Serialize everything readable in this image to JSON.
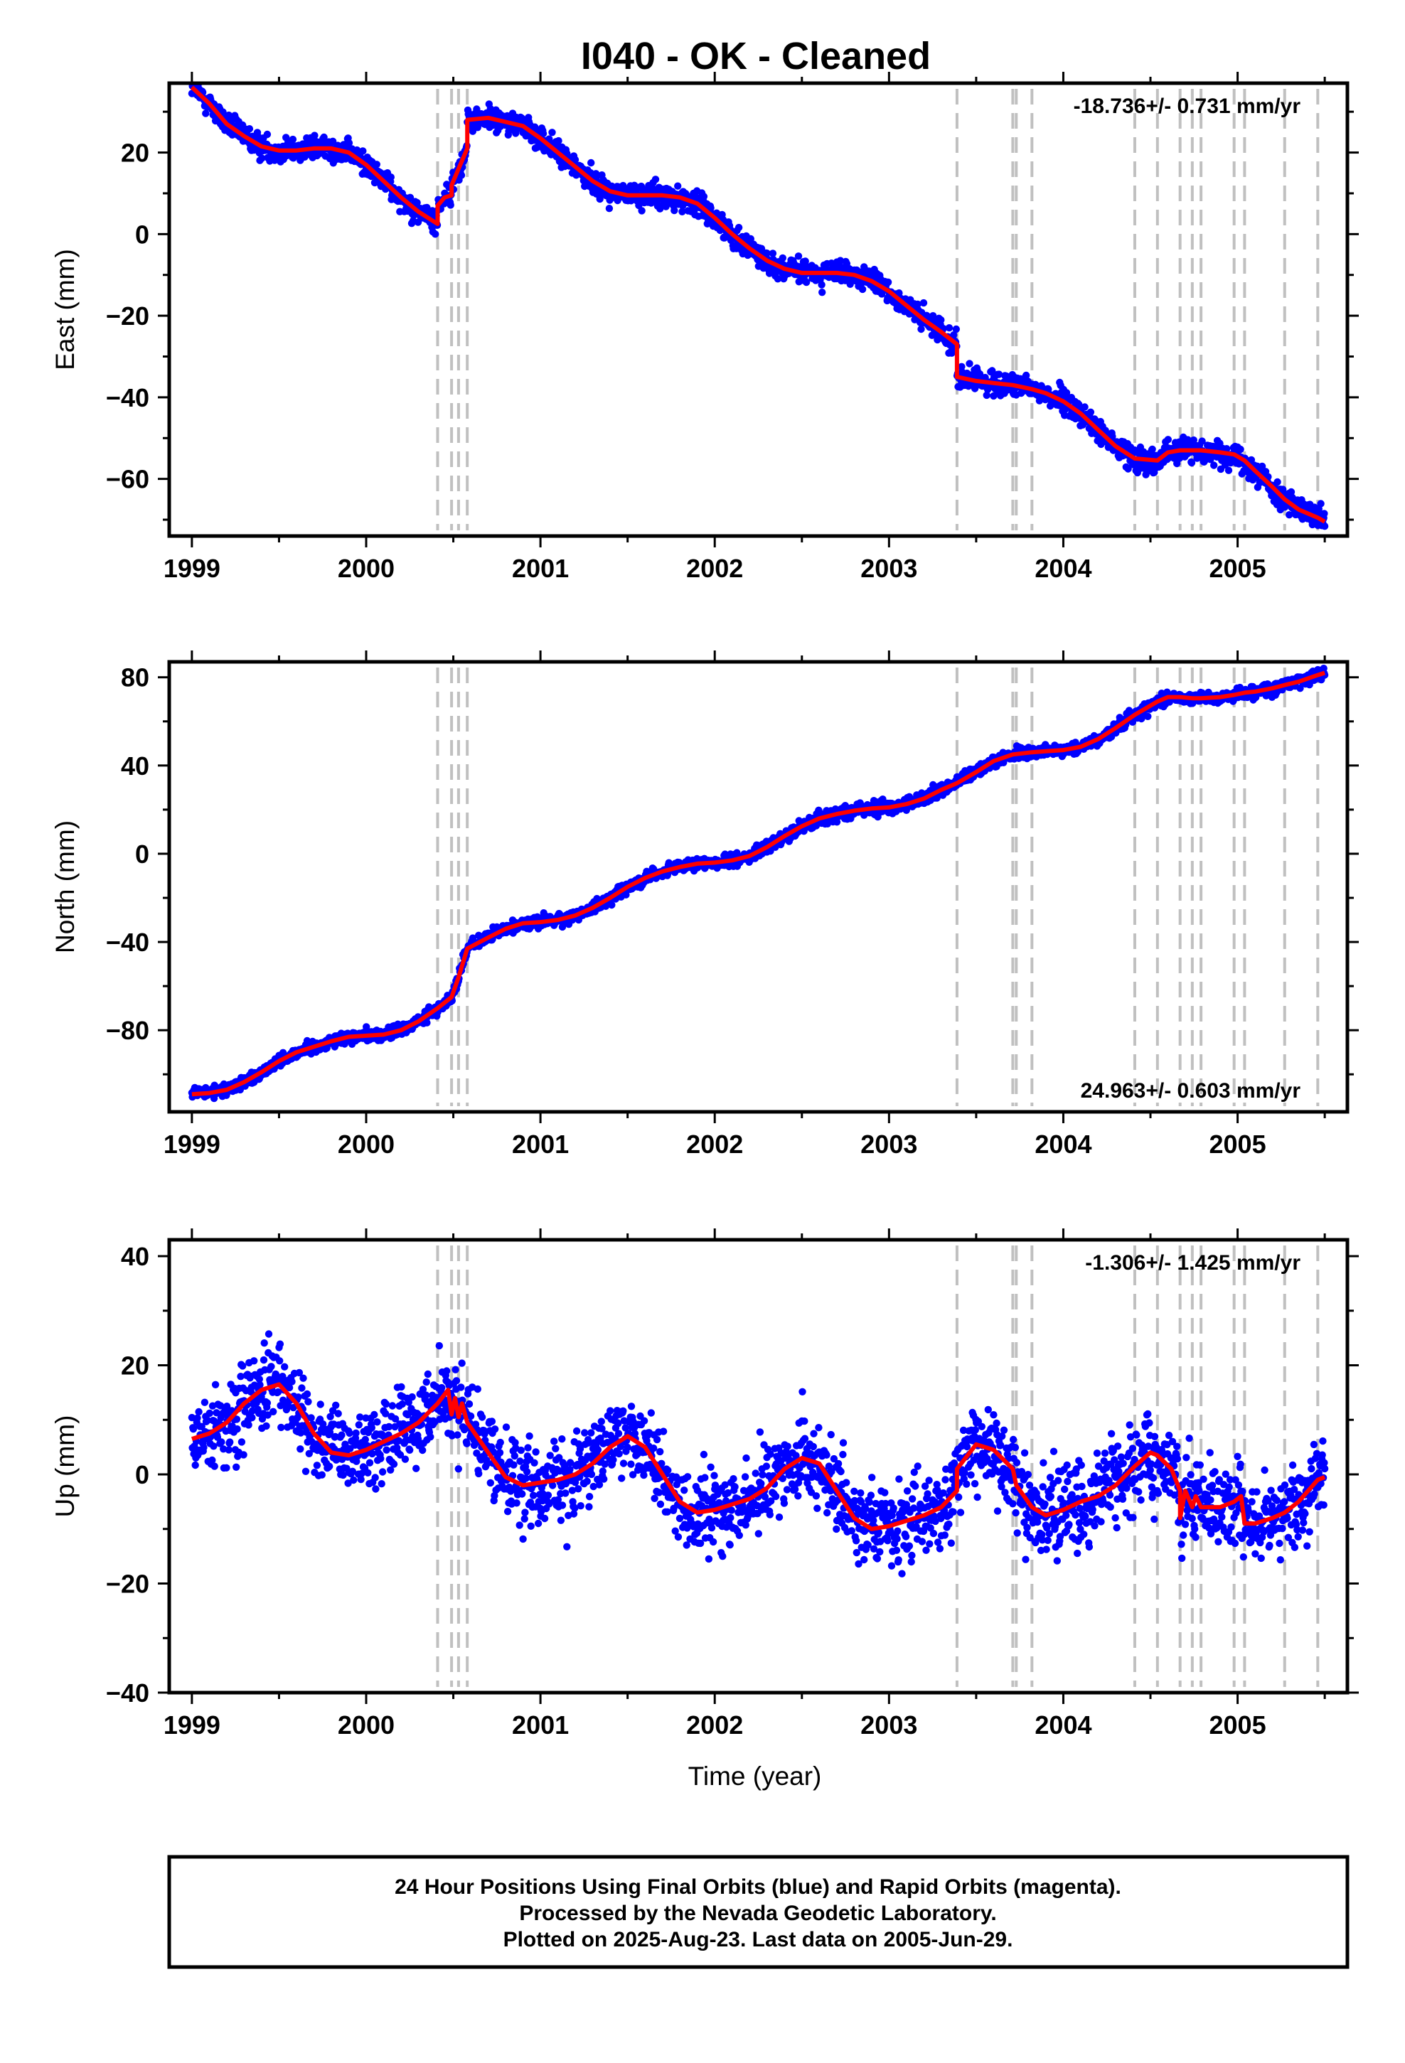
{
  "page": {
    "title": "I040  - OK - Cleaned"
  },
  "colors": {
    "points": "#0000ff",
    "model": "#ff0000",
    "steps": "#c0c0c0",
    "frame": "#000000"
  },
  "footer": {
    "lines": [
      "24 Hour Positions Using Final Orbits (blue) and Rapid Orbits (magenta).",
      "Processed by the Nevada Geodetic Laboratory.",
      "Plotted on 2025-Aug-23. Last data on 2005-Jun-29."
    ]
  },
  "chart_data": [
    {
      "type": "scatter",
      "component": "east",
      "title": "",
      "xlabel": "",
      "ylabel": "East (mm)",
      "rate_label": "-18.736+/- 0.731 mm/yr",
      "xlim": [
        1998.87,
        2005.63
      ],
      "ylim": [
        -74,
        37
      ],
      "x_ticks": [
        1999,
        2000,
        2001,
        2002,
        2003,
        2004,
        2005
      ],
      "x_tick_labels": [
        "1999",
        "2000",
        "2001",
        "2002",
        "2003",
        "2004",
        "2005"
      ],
      "y_ticks": [
        20,
        0,
        -20,
        -40,
        -60
      ],
      "y_tick_labels": [
        "20",
        "0",
        "−20",
        "−40",
        "−60"
      ],
      "step_lines": [
        2000.41,
        2000.49,
        2000.53,
        2000.58,
        2003.39,
        2003.71,
        2003.73,
        2003.82,
        2004.41,
        2004.54,
        2004.67,
        2004.74,
        2004.79,
        2004.98,
        2005.04,
        2005.27,
        2005.46
      ],
      "model": [
        [
          1999.0,
          36
        ],
        [
          1999.1,
          32
        ],
        [
          1999.2,
          27
        ],
        [
          1999.3,
          24
        ],
        [
          1999.4,
          21.5
        ],
        [
          1999.5,
          20.5
        ],
        [
          1999.6,
          20.5
        ],
        [
          1999.7,
          21
        ],
        [
          1999.8,
          21
        ],
        [
          1999.9,
          20
        ],
        [
          2000.0,
          17
        ],
        [
          2000.1,
          13
        ],
        [
          2000.2,
          9
        ],
        [
          2000.3,
          5.5
        ],
        [
          2000.41,
          2.5
        ],
        [
          2000.41,
          7
        ],
        [
          2000.45,
          9
        ],
        [
          2000.49,
          9.5
        ],
        [
          2000.49,
          12
        ],
        [
          2000.53,
          16
        ],
        [
          2000.58,
          21
        ],
        [
          2000.58,
          28
        ],
        [
          2000.7,
          28.5
        ],
        [
          2000.8,
          27.5
        ],
        [
          2000.9,
          26.5
        ],
        [
          2001.0,
          23.5
        ],
        [
          2001.1,
          20
        ],
        [
          2001.2,
          16.5
        ],
        [
          2001.3,
          13
        ],
        [
          2001.4,
          10.5
        ],
        [
          2001.5,
          9.5
        ],
        [
          2001.6,
          9.5
        ],
        [
          2001.7,
          9.5
        ],
        [
          2001.8,
          9
        ],
        [
          2001.9,
          7.5
        ],
        [
          2002.0,
          4
        ],
        [
          2002.1,
          0
        ],
        [
          2002.2,
          -3.5
        ],
        [
          2002.3,
          -6.5
        ],
        [
          2002.4,
          -8.5
        ],
        [
          2002.5,
          -9.5
        ],
        [
          2002.6,
          -9.5
        ],
        [
          2002.7,
          -9.5
        ],
        [
          2002.8,
          -10
        ],
        [
          2002.9,
          -11.5
        ],
        [
          2003.0,
          -14
        ],
        [
          2003.1,
          -17.5
        ],
        [
          2003.2,
          -21
        ],
        [
          2003.3,
          -24
        ],
        [
          2003.39,
          -27
        ],
        [
          2003.39,
          -35
        ],
        [
          2003.5,
          -36
        ],
        [
          2003.6,
          -36.5
        ],
        [
          2003.71,
          -37
        ],
        [
          2003.82,
          -38
        ],
        [
          2003.9,
          -39
        ],
        [
          2004.0,
          -41
        ],
        [
          2004.1,
          -44
        ],
        [
          2004.2,
          -48
        ],
        [
          2004.3,
          -52
        ],
        [
          2004.41,
          -55
        ],
        [
          2004.54,
          -55.5
        ],
        [
          2004.6,
          -53.5
        ],
        [
          2004.67,
          -53
        ],
        [
          2004.74,
          -53
        ],
        [
          2004.79,
          -53
        ],
        [
          2004.9,
          -53.5
        ],
        [
          2004.98,
          -54
        ],
        [
          2005.04,
          -55.5
        ],
        [
          2005.1,
          -58
        ],
        [
          2005.2,
          -62
        ],
        [
          2005.27,
          -65
        ],
        [
          2005.35,
          -67.5
        ],
        [
          2005.46,
          -69.5
        ],
        [
          2005.5,
          -70.5
        ]
      ]
    },
    {
      "type": "scatter",
      "component": "north",
      "title": "",
      "xlabel": "",
      "ylabel": "North (mm)",
      "rate_label": "24.963+/- 0.603 mm/yr",
      "xlim": [
        1998.87,
        2005.63
      ],
      "ylim": [
        -117,
        87
      ],
      "x_ticks": [
        1999,
        2000,
        2001,
        2002,
        2003,
        2004,
        2005
      ],
      "x_tick_labels": [
        "1999",
        "2000",
        "2001",
        "2002",
        "2003",
        "2004",
        "2005"
      ],
      "y_ticks": [
        80,
        40,
        0,
        -40,
        -80
      ],
      "y_tick_labels": [
        "80",
        "40",
        "0",
        "−40",
        "−80"
      ],
      "step_lines": [
        2000.41,
        2000.49,
        2000.53,
        2000.58,
        2003.39,
        2003.71,
        2003.73,
        2003.82,
        2004.41,
        2004.54,
        2004.67,
        2004.74,
        2004.79,
        2004.98,
        2005.04,
        2005.27,
        2005.46
      ],
      "model": [
        [
          1999.0,
          -109
        ],
        [
          1999.1,
          -108.5
        ],
        [
          1999.2,
          -107
        ],
        [
          1999.3,
          -103.5
        ],
        [
          1999.4,
          -99
        ],
        [
          1999.5,
          -94
        ],
        [
          1999.6,
          -90
        ],
        [
          1999.7,
          -87.5
        ],
        [
          1999.8,
          -85
        ],
        [
          1999.9,
          -83
        ],
        [
          2000.0,
          -82.5
        ],
        [
          2000.1,
          -82
        ],
        [
          2000.2,
          -80
        ],
        [
          2000.3,
          -76
        ],
        [
          2000.41,
          -70
        ],
        [
          2000.49,
          -65
        ],
        [
          2000.53,
          -56
        ],
        [
          2000.58,
          -43
        ],
        [
          2000.7,
          -38
        ],
        [
          2000.8,
          -34
        ],
        [
          2000.9,
          -31.5
        ],
        [
          2001.0,
          -31
        ],
        [
          2001.1,
          -30
        ],
        [
          2001.2,
          -28
        ],
        [
          2001.3,
          -24.5
        ],
        [
          2001.4,
          -20
        ],
        [
          2001.5,
          -15
        ],
        [
          2001.6,
          -11
        ],
        [
          2001.7,
          -8
        ],
        [
          2001.8,
          -6
        ],
        [
          2001.9,
          -4.5
        ],
        [
          2002.0,
          -4
        ],
        [
          2002.1,
          -3
        ],
        [
          2002.2,
          -1
        ],
        [
          2002.3,
          3
        ],
        [
          2002.4,
          8
        ],
        [
          2002.5,
          12.5
        ],
        [
          2002.6,
          16
        ],
        [
          2002.7,
          18
        ],
        [
          2002.8,
          19.5
        ],
        [
          2002.9,
          20.5
        ],
        [
          2003.0,
          21
        ],
        [
          2003.1,
          22.5
        ],
        [
          2003.2,
          25
        ],
        [
          2003.3,
          29
        ],
        [
          2003.39,
          32
        ],
        [
          2003.5,
          37
        ],
        [
          2003.6,
          42
        ],
        [
          2003.71,
          45
        ],
        [
          2003.82,
          46
        ],
        [
          2003.9,
          46.5
        ],
        [
          2004.0,
          47
        ],
        [
          2004.1,
          48.5
        ],
        [
          2004.2,
          52
        ],
        [
          2004.3,
          57
        ],
        [
          2004.41,
          63
        ],
        [
          2004.54,
          69
        ],
        [
          2004.6,
          71
        ],
        [
          2004.67,
          71
        ],
        [
          2004.74,
          70.5
        ],
        [
          2004.79,
          70.5
        ],
        [
          2004.9,
          71
        ],
        [
          2004.98,
          72
        ],
        [
          2005.04,
          73
        ],
        [
          2005.1,
          73.5
        ],
        [
          2005.2,
          75
        ],
        [
          2005.27,
          76.5
        ],
        [
          2005.35,
          78
        ],
        [
          2005.46,
          81
        ],
        [
          2005.5,
          82
        ]
      ]
    },
    {
      "type": "scatter",
      "component": "up",
      "title": "",
      "xlabel": "Time (year)",
      "ylabel": "Up (mm)",
      "rate_label": "-1.306+/- 1.425 mm/yr",
      "xlim": [
        1998.87,
        2005.63
      ],
      "ylim": [
        -40,
        43
      ],
      "x_ticks": [
        1999,
        2000,
        2001,
        2002,
        2003,
        2004,
        2005
      ],
      "x_tick_labels": [
        "1999",
        "2000",
        "2001",
        "2002",
        "2003",
        "2004",
        "2005"
      ],
      "y_ticks": [
        40,
        20,
        0,
        -20,
        -40
      ],
      "y_tick_labels": [
        "40",
        "20",
        "0",
        "−20",
        "−40"
      ],
      "step_lines": [
        2000.41,
        2000.49,
        2000.53,
        2000.58,
        2003.39,
        2003.71,
        2003.73,
        2003.82,
        2004.41,
        2004.54,
        2004.67,
        2004.74,
        2004.79,
        2004.98,
        2005.04,
        2005.27,
        2005.46
      ],
      "model": [
        [
          1999.0,
          6.5
        ],
        [
          1999.1,
          7.5
        ],
        [
          1999.2,
          9.5
        ],
        [
          1999.3,
          13
        ],
        [
          1999.4,
          15.5
        ],
        [
          1999.5,
          16.5
        ],
        [
          1999.6,
          13
        ],
        [
          1999.7,
          7.5
        ],
        [
          1999.8,
          4
        ],
        [
          1999.9,
          3.5
        ],
        [
          2000.0,
          4.5
        ],
        [
          2000.1,
          6
        ],
        [
          2000.2,
          7.5
        ],
        [
          2000.3,
          9.5
        ],
        [
          2000.41,
          13
        ],
        [
          2000.47,
          15.5
        ],
        [
          2000.49,
          11
        ],
        [
          2000.51,
          14
        ],
        [
          2000.53,
          10.5
        ],
        [
          2000.55,
          13
        ],
        [
          2000.58,
          9.5
        ],
        [
          2000.7,
          4
        ],
        [
          2000.8,
          -0.5
        ],
        [
          2000.9,
          -2
        ],
        [
          2001.0,
          -1.5
        ],
        [
          2001.1,
          -1
        ],
        [
          2001.2,
          0
        ],
        [
          2001.3,
          2
        ],
        [
          2001.4,
          5
        ],
        [
          2001.5,
          7
        ],
        [
          2001.6,
          5
        ],
        [
          2001.7,
          0
        ],
        [
          2001.8,
          -5
        ],
        [
          2001.9,
          -7
        ],
        [
          2002.0,
          -6.5
        ],
        [
          2002.1,
          -5.5
        ],
        [
          2002.2,
          -4.5
        ],
        [
          2002.3,
          -2.5
        ],
        [
          2002.4,
          1
        ],
        [
          2002.5,
          3
        ],
        [
          2002.6,
          2
        ],
        [
          2002.7,
          -3
        ],
        [
          2002.8,
          -8
        ],
        [
          2002.9,
          -10
        ],
        [
          2003.0,
          -9.5
        ],
        [
          2003.1,
          -8.5
        ],
        [
          2003.2,
          -7.5
        ],
        [
          2003.3,
          -6
        ],
        [
          2003.39,
          -3
        ],
        [
          2003.39,
          1
        ],
        [
          2003.5,
          5.5
        ],
        [
          2003.6,
          4.5
        ],
        [
          2003.71,
          1
        ],
        [
          2003.73,
          -2
        ],
        [
          2003.82,
          -6
        ],
        [
          2003.9,
          -7.5
        ],
        [
          2004.0,
          -6.5
        ],
        [
          2004.1,
          -5
        ],
        [
          2004.2,
          -4
        ],
        [
          2004.3,
          -2
        ],
        [
          2004.41,
          1.5
        ],
        [
          2004.5,
          4
        ],
        [
          2004.54,
          3.5
        ],
        [
          2004.62,
          1
        ],
        [
          2004.67,
          -3
        ],
        [
          2004.67,
          -8
        ],
        [
          2004.7,
          -3
        ],
        [
          2004.74,
          -6
        ],
        [
          2004.76,
          -4
        ],
        [
          2004.79,
          -6
        ],
        [
          2004.9,
          -6
        ],
        [
          2004.98,
          -5
        ],
        [
          2005.02,
          -4
        ],
        [
          2005.04,
          -9
        ],
        [
          2005.1,
          -9
        ],
        [
          2005.2,
          -8
        ],
        [
          2005.27,
          -7
        ],
        [
          2005.35,
          -5
        ],
        [
          2005.46,
          -1
        ],
        [
          2005.5,
          -0.5
        ]
      ]
    }
  ]
}
